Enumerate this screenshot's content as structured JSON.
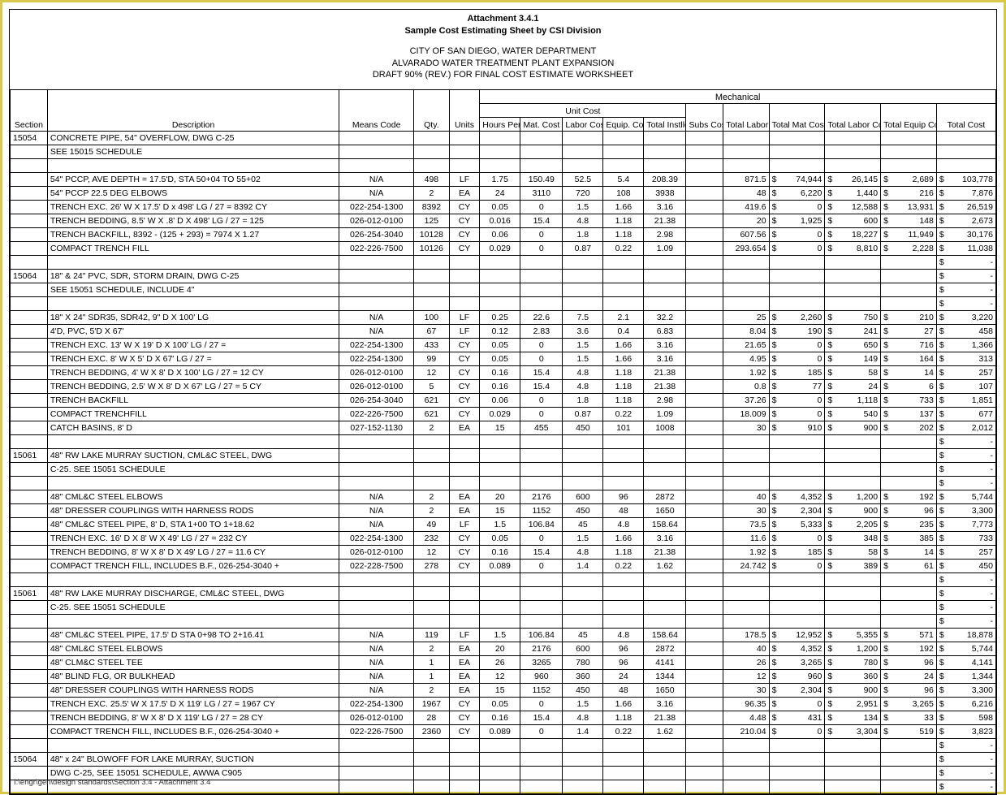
{
  "title": {
    "att": "Attachment 3.4.1",
    "sub": "Sample Cost Estimating Sheet by CSI Division",
    "l1": "CITY OF SAN DIEGO, WATER DEPARTMENT",
    "l2": "ALVARADO WATER TREATMENT PLANT EXPANSION",
    "l3": "DRAFT 90% (REV.) FOR FINAL COST ESTIMATE WORKSHEET",
    "division": "Mechanical"
  },
  "headers": {
    "unitcost": "Unit Cost",
    "section": "Section",
    "desc": "Description",
    "means": "Means Code",
    "qty": "Qty.",
    "units": "Units",
    "hpu": "Hours Per Unit",
    "mat": "Mat. Cost",
    "lab": "Labor Cost",
    "eq": "Equip. Cost",
    "tin": "Total Instlld Cost",
    "subs": "Subs Cost",
    "tlh": "Total Labor Hours",
    "tmat": "Total Mat Cost",
    "tlab": "Total Labor Cost",
    "teq": "Total Equip Cost",
    "tcost": "Total Cost"
  },
  "footer": "I:\\engr\\gen\\design standards\\Section 3.4 - Attachment 3.4",
  "rows": [
    {
      "sec": "15054",
      "desc": "CONCRETE PIPE, 54\" OVERFLOW, DWG C-25"
    },
    {
      "desc": "SEE 15015 SCHEDULE"
    },
    {
      "blank": true
    },
    {
      "desc": "54\" PCCP, AVE DEPTH = 17.5'D, STA 50+04 TO 55+02",
      "means": "N/A",
      "qty": "498",
      "units": "LF",
      "hpu": "1.75",
      "mat": "150.49",
      "lab": "52.5",
      "eq": "5.4",
      "tin": "208.39",
      "tlh": "871.5",
      "tmat": "74,944",
      "tlab": "26,145",
      "teq": "2,689",
      "tcost": "103,778"
    },
    {
      "desc": "54\" PCCP 22.5 DEG ELBOWS",
      "means": "N/A",
      "qty": "2",
      "units": "EA",
      "hpu": "24",
      "mat": "3110",
      "lab": "720",
      "eq": "108",
      "tin": "3938",
      "tlh": "48",
      "tmat": "6,220",
      "tlab": "1,440",
      "teq": "216",
      "tcost": "7,876"
    },
    {
      "desc": "TRENCH EXC. 26' W X 17.5' D x 498' LG / 27 = 8392 CY",
      "means": "022-254-1300",
      "qty": "8392",
      "units": "CY",
      "hpu": "0.05",
      "mat": "0",
      "lab": "1.5",
      "eq": "1.66",
      "tin": "3.16",
      "tlh": "419.6",
      "tmat": "0",
      "tlab": "12,588",
      "teq": "13,931",
      "tcost": "26,519"
    },
    {
      "desc": "TRENCH BEDDING, 8.5' W X .8' D X 498' LG / 27 = 125",
      "means": "026-012-0100",
      "qty": "125",
      "units": "CY",
      "hpu": "0.016",
      "mat": "15.4",
      "lab": "4.8",
      "eq": "1.18",
      "tin": "21.38",
      "tlh": "20",
      "tmat": "1,925",
      "tlab": "600",
      "teq": "148",
      "tcost": "2,673"
    },
    {
      "desc": "TRENCH BACKFILL, 8392 - (125 + 293) = 7974 X 1.27",
      "means": "026-254-3040",
      "qty": "10128",
      "units": "CY",
      "hpu": "0.06",
      "mat": "0",
      "lab": "1.8",
      "eq": "1.18",
      "tin": "2.98",
      "tlh": "607.56",
      "tmat": "0",
      "tlab": "18,227",
      "teq": "11,949",
      "tcost": "30,176"
    },
    {
      "desc": "COMPACT TRENCH FILL",
      "means": "022-226-7500",
      "qty": "10126",
      "units": "CY",
      "hpu": "0.029",
      "mat": "0",
      "lab": "0.87",
      "eq": "0.22",
      "tin": "1.09",
      "tlh": "293.654",
      "tmat": "0",
      "tlab": "8,810",
      "teq": "2,228",
      "tcost": "11,038"
    },
    {
      "blank": true,
      "tcost": "-"
    },
    {
      "sec": "15064",
      "desc": "18\" & 24\" PVC, SDR, STORM DRAIN, DWG C-25",
      "tcost": "-"
    },
    {
      "desc": "SEE 15051 SCHEDULE, INCLUDE 4\"",
      "tcost": "-"
    },
    {
      "blank": true,
      "tcost": "-"
    },
    {
      "desc": "18\" X 24\" SDR35, SDR42, 9\" D X 100' LG",
      "means": "N/A",
      "qty": "100",
      "units": "LF",
      "hpu": "0.25",
      "mat": "22.6",
      "lab": "7.5",
      "eq": "2.1",
      "tin": "32.2",
      "tlh": "25",
      "tmat": "2,260",
      "tlab": "750",
      "teq": "210",
      "tcost": "3,220"
    },
    {
      "desc": "4'D, PVC, 5'D X 67'",
      "means": "N/A",
      "qty": "67",
      "units": "LF",
      "hpu": "0.12",
      "mat": "2.83",
      "lab": "3.6",
      "eq": "0.4",
      "tin": "6.83",
      "tlh": "8.04",
      "tmat": "190",
      "tlab": "241",
      "teq": "27",
      "tcost": "458"
    },
    {
      "desc": "TRENCH EXC. 13' W X 19' D X 100' LG / 27 =",
      "means": "022-254-1300",
      "qty": "433",
      "units": "CY",
      "hpu": "0.05",
      "mat": "0",
      "lab": "1.5",
      "eq": "1.66",
      "tin": "3.16",
      "tlh": "21.65",
      "tmat": "0",
      "tlab": "650",
      "teq": "716",
      "tcost": "1,366"
    },
    {
      "desc": "TRENCH EXC. 8' W X 5' D X 67' LG / 27 =",
      "means": "022-254-1300",
      "qty": "99",
      "units": "CY",
      "hpu": "0.05",
      "mat": "0",
      "lab": "1.5",
      "eq": "1.66",
      "tin": "3.16",
      "tlh": "4.95",
      "tmat": "0",
      "tlab": "149",
      "teq": "164",
      "tcost": "313"
    },
    {
      "desc": "TRENCH BEDDING, 4' W X 8' D X 100' LG / 27 = 12 CY",
      "means": "026-012-0100",
      "qty": "12",
      "units": "CY",
      "hpu": "0.16",
      "mat": "15.4",
      "lab": "4.8",
      "eq": "1.18",
      "tin": "21.38",
      "tlh": "1.92",
      "tmat": "185",
      "tlab": "58",
      "teq": "14",
      "tcost": "257"
    },
    {
      "desc": "TRENCH BEDDING, 2.5' W X 8' D X 67' LG / 27 = 5 CY",
      "means": "026-012-0100",
      "qty": "5",
      "units": "CY",
      "hpu": "0.16",
      "mat": "15.4",
      "lab": "4.8",
      "eq": "1.18",
      "tin": "21.38",
      "tlh": "0.8",
      "tmat": "77",
      "tlab": "24",
      "teq": "6",
      "tcost": "107"
    },
    {
      "desc": "TRENCH BACKFILL",
      "means": "026-254-3040",
      "qty": "621",
      "units": "CY",
      "hpu": "0.06",
      "mat": "0",
      "lab": "1.8",
      "eq": "1.18",
      "tin": "2.98",
      "tlh": "37.26",
      "tmat": "0",
      "tlab": "1,118",
      "teq": "733",
      "tcost": "1,851"
    },
    {
      "desc": "COMPACT TRENCHFILL",
      "means": "022-226-7500",
      "qty": "621",
      "units": "CY",
      "hpu": "0.029",
      "mat": "0",
      "lab": "0.87",
      "eq": "0.22",
      "tin": "1.09",
      "tlh": "18.009",
      "tmat": "0",
      "tlab": "540",
      "teq": "137",
      "tcost": "677"
    },
    {
      "desc": "CATCH BASINS, 8' D",
      "means": "027-152-1130",
      "qty": "2",
      "units": "EA",
      "hpu": "15",
      "mat": "455",
      "lab": "450",
      "eq": "101",
      "tin": "1008",
      "tlh": "30",
      "tmat": "910",
      "tlab": "900",
      "teq": "202",
      "tcost": "2,012"
    },
    {
      "blank": true,
      "tcost": "-"
    },
    {
      "sec": "15061",
      "desc": "48\" RW LAKE MURRAY SUCTION, CML&C STEEL, DWG",
      "tcost": "-"
    },
    {
      "desc": " C-25. SEE 15051 SCHEDULE",
      "tcost": "-"
    },
    {
      "blank": true,
      "tcost": "-"
    },
    {
      "desc": "48\" CML&C STEEL ELBOWS",
      "means": "N/A",
      "qty": "2",
      "units": "EA",
      "hpu": "20",
      "mat": "2176",
      "lab": "600",
      "eq": "96",
      "tin": "2872",
      "tlh": "40",
      "tmat": "4,352",
      "tlab": "1,200",
      "teq": "192",
      "tcost": "5,744"
    },
    {
      "desc": "48\" DRESSER COUPLINGS WITH HARNESS RODS",
      "means": "N/A",
      "qty": "2",
      "units": "EA",
      "hpu": "15",
      "mat": "1152",
      "lab": "450",
      "eq": "48",
      "tin": "1650",
      "tlh": "30",
      "tmat": "2,304",
      "tlab": "900",
      "teq": "96",
      "tcost": "3,300"
    },
    {
      "desc": "48\" CML&C STEEL PIPE, 8' D, STA 1+00 TO 1+18.62",
      "means": "N/A",
      "qty": "49",
      "units": "LF",
      "hpu": "1.5",
      "mat": "106.84",
      "lab": "45",
      "eq": "4.8",
      "tin": "158.64",
      "tlh": "73.5",
      "tmat": "5,333",
      "tlab": "2,205",
      "teq": "235",
      "tcost": "7,773"
    },
    {
      "desc": "TRENCH EXC. 16' D X 8' W X 49' LG / 27 = 232 CY",
      "means": "022-254-1300",
      "qty": "232",
      "units": "CY",
      "hpu": "0.05",
      "mat": "0",
      "lab": "1.5",
      "eq": "1.66",
      "tin": "3.16",
      "tlh": "11.6",
      "tmat": "0",
      "tlab": "348",
      "teq": "385",
      "tcost": "733"
    },
    {
      "desc": "TRENCH BEDDING, 8' W X 8' D X 49' LG / 27 = 11.6 CY",
      "means": "026-012-0100",
      "qty": "12",
      "units": "CY",
      "hpu": "0.16",
      "mat": "15.4",
      "lab": "4.8",
      "eq": "1.18",
      "tin": "21.38",
      "tlh": "1.92",
      "tmat": "185",
      "tlab": "58",
      "teq": "14",
      "tcost": "257"
    },
    {
      "desc": "COMPACT TRENCH FILL, INCLUDES B.F., 026-254-3040 +",
      "means": "022-228-7500",
      "qty": "278",
      "units": "CY",
      "hpu": "0.089",
      "mat": "0",
      "lab": "1.4",
      "eq": "0.22",
      "tin": "1.62",
      "tlh": "24.742",
      "tmat": "0",
      "tlab": "389",
      "teq": "61",
      "tcost": "450"
    },
    {
      "blank": true,
      "tcost": "-"
    },
    {
      "sec": "15061",
      "desc": "48\" RW LAKE MURRAY DISCHARGE, CML&C STEEL, DWG",
      "tcost": "-"
    },
    {
      "desc": "C-25. SEE 15051 SCHEDULE",
      "tcost": "-"
    },
    {
      "blank": true,
      "tcost": "-"
    },
    {
      "desc": "48\" CML&C STEEL PIPE, 17.5' D STA 0+98 TO 2+16.41",
      "means": "N/A",
      "qty": "119",
      "units": "LF",
      "hpu": "1.5",
      "mat": "106.84",
      "lab": "45",
      "eq": "4.8",
      "tin": "158.64",
      "tlh": "178.5",
      "tmat": "12,952",
      "tlab": "5,355",
      "teq": "571",
      "tcost": "18,878"
    },
    {
      "desc": "48\" CML&C STEEL ELBOWS",
      "means": "N/A",
      "qty": "2",
      "units": "EA",
      "hpu": "20",
      "mat": "2176",
      "lab": "600",
      "eq": "96",
      "tin": "2872",
      "tlh": "40",
      "tmat": "4,352",
      "tlab": "1,200",
      "teq": "192",
      "tcost": "5,744"
    },
    {
      "desc": "48\" CLM&C STEEL TEE",
      "means": "N/A",
      "qty": "1",
      "units": "EA",
      "hpu": "26",
      "mat": "3265",
      "lab": "780",
      "eq": "96",
      "tin": "4141",
      "tlh": "26",
      "tmat": "3,265",
      "tlab": "780",
      "teq": "96",
      "tcost": "4,141"
    },
    {
      "desc": "48\" BLIND FLG, OR BULKHEAD",
      "means": "N/A",
      "qty": "1",
      "units": "EA",
      "hpu": "12",
      "mat": "960",
      "lab": "360",
      "eq": "24",
      "tin": "1344",
      "tlh": "12",
      "tmat": "960",
      "tlab": "360",
      "teq": "24",
      "tcost": "1,344"
    },
    {
      "desc": "48\" DRESSER COUPLINGS WITH HARNESS RODS",
      "means": "N/A",
      "qty": "2",
      "units": "EA",
      "hpu": "15",
      "mat": "1152",
      "lab": "450",
      "eq": "48",
      "tin": "1650",
      "tlh": "30",
      "tmat": "2,304",
      "tlab": "900",
      "teq": "96",
      "tcost": "3,300"
    },
    {
      "desc": "TRENCH EXC. 25.5' W X 17.5' D X 119' LG / 27 = 1967 CY",
      "means": "022-254-1300",
      "qty": "1967",
      "units": "CY",
      "hpu": "0.05",
      "mat": "0",
      "lab": "1.5",
      "eq": "1.66",
      "tin": "3.16",
      "tlh": "96.35",
      "tmat": "0",
      "tlab": "2,951",
      "teq": "3,265",
      "tcost": "6,216"
    },
    {
      "desc": "TRENCH BEDDING, 8' W X 8' D X 119' LG / 27 = 28 CY",
      "means": "026-012-0100",
      "qty": "28",
      "units": "CY",
      "hpu": "0.16",
      "mat": "15.4",
      "lab": "4.8",
      "eq": "1.18",
      "tin": "21.38",
      "tlh": "4.48",
      "tmat": "431",
      "tlab": "134",
      "teq": "33",
      "tcost": "598"
    },
    {
      "desc": "COMPACT TRENCH FILL, INCLUDES B.F., 026-254-3040 +",
      "means": "022-226-7500",
      "qty": "2360",
      "units": "CY",
      "hpu": "0.089",
      "mat": "0",
      "lab": "1.4",
      "eq": "0.22",
      "tin": "1.62",
      "tlh": "210.04",
      "tmat": "0",
      "tlab": "3,304",
      "teq": "519",
      "tcost": "3,823"
    },
    {
      "blank": true,
      "tcost": "-"
    },
    {
      "sec": "15064",
      "desc": "48\" x 24\" BLOWOFF FOR LAKE MURRAY, SUCTION",
      "tcost": "-"
    },
    {
      "desc": "DWG C-25, SEE 15051 SCHEDULE, AWWA C905",
      "tcost": "-"
    },
    {
      "blank": true,
      "tcost": "-"
    }
  ]
}
